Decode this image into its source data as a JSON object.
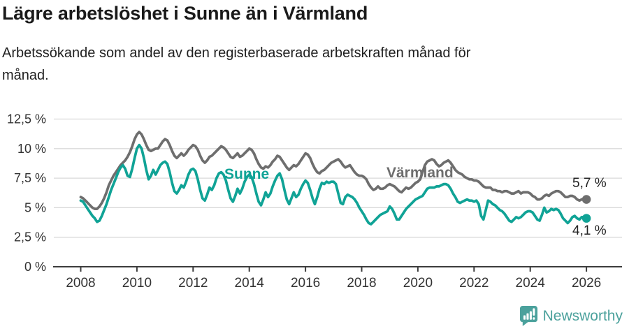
{
  "header": {
    "title": "Lägre arbetslöshet i Sunne än i Värmland",
    "subtitle": "Arbetssökande som andel av den registerbaserade arbetskraften månad för månad."
  },
  "footer": {
    "brand": "Newsworthy",
    "brand_color": "#4ba19c",
    "logo_icon": "newsworthy-speech-bubble-bar-chart-icon"
  },
  "chart_data": {
    "type": "line",
    "title": "Lägre arbetslöshet i Sunne än i Värmland",
    "x_start": 2008.0,
    "x_end": 2026.0,
    "frequency": "monthly",
    "x_ticks": [
      2008,
      2010,
      2012,
      2014,
      2016,
      2018,
      2020,
      2022,
      2024,
      2026
    ],
    "y_ticks": [
      {
        "value": 12.5,
        "label": "12,5 %"
      },
      {
        "value": 10,
        "label": "10 %"
      },
      {
        "value": 7.5,
        "label": "7,5 %"
      },
      {
        "value": 5,
        "label": "5 %"
      },
      {
        "value": 2.5,
        "label": "2,5 %"
      },
      {
        "value": 0,
        "label": "0 %"
      }
    ],
    "ylim": [
      0,
      13.2
    ],
    "grid": true,
    "grid_color": "#d9d9d9",
    "axis_color": "#3c3c3c",
    "tick_label_color": "#333333",
    "legend_position": "inline-labels",
    "series": [
      {
        "name": "Värmland",
        "color": "#6e6e6e",
        "end_label": "5,7 %",
        "end_value": 5.7,
        "values": [
          5.9,
          5.8,
          5.6,
          5.4,
          5.2,
          5.0,
          4.9,
          4.9,
          5.1,
          5.4,
          5.8,
          6.3,
          6.9,
          7.3,
          7.7,
          8.0,
          8.3,
          8.6,
          8.8,
          9.0,
          9.3,
          9.7,
          10.2,
          10.8,
          11.2,
          11.4,
          11.2,
          10.8,
          10.3,
          9.9,
          9.8,
          9.9,
          10.0,
          10.0,
          10.3,
          10.6,
          10.8,
          10.7,
          10.3,
          9.8,
          9.4,
          9.2,
          9.4,
          9.6,
          9.4,
          9.6,
          9.9,
          10.1,
          10.3,
          10.2,
          9.9,
          9.4,
          9.0,
          8.8,
          9.0,
          9.3,
          9.4,
          9.6,
          9.8,
          10.0,
          10.2,
          10.1,
          9.9,
          9.6,
          9.3,
          9.2,
          9.4,
          9.6,
          9.3,
          9.4,
          9.6,
          9.8,
          10.0,
          9.9,
          9.6,
          9.1,
          8.7,
          8.4,
          8.3,
          8.5,
          8.4,
          8.6,
          8.9,
          9.1,
          9.4,
          9.3,
          9.0,
          8.7,
          8.4,
          8.2,
          8.4,
          8.6,
          8.5,
          8.7,
          9.0,
          9.3,
          9.6,
          9.5,
          9.2,
          8.7,
          8.3,
          8.0,
          7.9,
          8.1,
          8.2,
          8.4,
          8.6,
          8.8,
          8.9,
          9.0,
          9.1,
          8.9,
          8.6,
          8.4,
          8.5,
          8.6,
          8.3,
          8.0,
          7.8,
          7.7,
          7.7,
          7.6,
          7.4,
          7.0,
          6.7,
          6.5,
          6.6,
          6.8,
          6.6,
          6.6,
          6.7,
          6.9,
          7.0,
          6.9,
          6.8,
          6.6,
          6.4,
          6.3,
          6.5,
          6.7,
          6.6,
          6.7,
          6.9,
          7.1,
          7.2,
          7.4,
          8.0,
          8.6,
          8.9,
          9.0,
          9.1,
          9.0,
          8.7,
          8.5,
          8.6,
          8.8,
          8.9,
          9.0,
          8.8,
          8.5,
          8.2,
          8.0,
          7.9,
          7.8,
          7.6,
          7.5,
          7.4,
          7.4,
          7.3,
          7.3,
          7.2,
          7.0,
          6.8,
          6.7,
          6.7,
          6.7,
          6.5,
          6.5,
          6.4,
          6.4,
          6.3,
          6.4,
          6.4,
          6.3,
          6.2,
          6.2,
          6.3,
          6.4,
          6.2,
          6.3,
          6.3,
          6.3,
          6.2,
          6.0,
          5.9,
          5.7,
          5.7,
          5.8,
          6.0,
          6.1,
          6.0,
          6.2,
          6.3,
          6.4,
          6.4,
          6.3,
          6.1,
          5.9,
          5.9,
          6.0,
          6.0,
          5.9,
          5.7,
          5.6,
          5.7,
          5.8,
          5.7
        ]
      },
      {
        "name": "Sunne",
        "color": "#10a396",
        "end_label": "4,1 %",
        "end_value": 4.1,
        "values": [
          5.6,
          5.5,
          5.2,
          4.9,
          4.6,
          4.3,
          4.1,
          3.8,
          3.9,
          4.3,
          4.8,
          5.3,
          5.9,
          6.5,
          7.0,
          7.5,
          8.0,
          8.4,
          8.6,
          8.3,
          7.7,
          7.6,
          8.3,
          9.2,
          10.0,
          10.3,
          10.0,
          9.2,
          8.2,
          7.4,
          7.7,
          8.2,
          7.8,
          8.2,
          8.6,
          8.8,
          8.9,
          8.7,
          8.0,
          7.1,
          6.4,
          6.2,
          6.5,
          6.9,
          6.7,
          7.2,
          7.8,
          8.2,
          8.3,
          8.1,
          7.4,
          6.5,
          5.8,
          5.6,
          6.1,
          6.7,
          6.5,
          6.9,
          7.5,
          7.9,
          8.0,
          7.8,
          7.3,
          6.5,
          5.8,
          5.5,
          6.0,
          6.6,
          6.2,
          6.6,
          7.2,
          7.6,
          7.8,
          7.6,
          7.0,
          6.2,
          5.5,
          5.2,
          5.7,
          6.3,
          5.9,
          6.2,
          6.8,
          7.3,
          7.7,
          7.9,
          7.4,
          6.5,
          5.7,
          5.3,
          5.8,
          6.3,
          5.9,
          6.1,
          6.6,
          7.0,
          7.3,
          7.1,
          6.5,
          5.8,
          5.3,
          5.9,
          6.6,
          7.1,
          7.0,
          7.2,
          7.1,
          7.2,
          7.2,
          7.0,
          6.2,
          5.4,
          5.3,
          5.9,
          6.1,
          6.0,
          5.9,
          5.7,
          5.4,
          5.0,
          4.7,
          4.4,
          4.0,
          3.7,
          3.6,
          3.8,
          4.0,
          4.2,
          4.4,
          4.5,
          4.6,
          4.7,
          5.1,
          4.9,
          4.5,
          4.0,
          4.0,
          4.3,
          4.6,
          4.9,
          5.1,
          5.3,
          5.5,
          5.7,
          5.8,
          5.9,
          6.0,
          6.3,
          6.6,
          6.7,
          6.7,
          6.7,
          6.8,
          6.8,
          6.9,
          7.0,
          7.0,
          6.9,
          6.6,
          6.2,
          5.9,
          5.5,
          5.4,
          5.5,
          5.6,
          5.7,
          5.6,
          5.6,
          5.5,
          5.6,
          5.3,
          4.3,
          4.0,
          4.8,
          5.6,
          5.5,
          5.3,
          5.2,
          5.0,
          4.8,
          4.7,
          4.5,
          4.2,
          3.9,
          3.8,
          4.0,
          4.2,
          4.1,
          4.2,
          4.4,
          4.6,
          4.7,
          4.7,
          4.6,
          4.3,
          4.0,
          3.9,
          4.4,
          5.0,
          4.6,
          4.7,
          4.9,
          4.8,
          4.9,
          4.8,
          4.5,
          4.1,
          3.9,
          3.7,
          3.9,
          4.2,
          4.3,
          4.1,
          4.0,
          4.2,
          4.2,
          4.1
        ]
      }
    ]
  }
}
